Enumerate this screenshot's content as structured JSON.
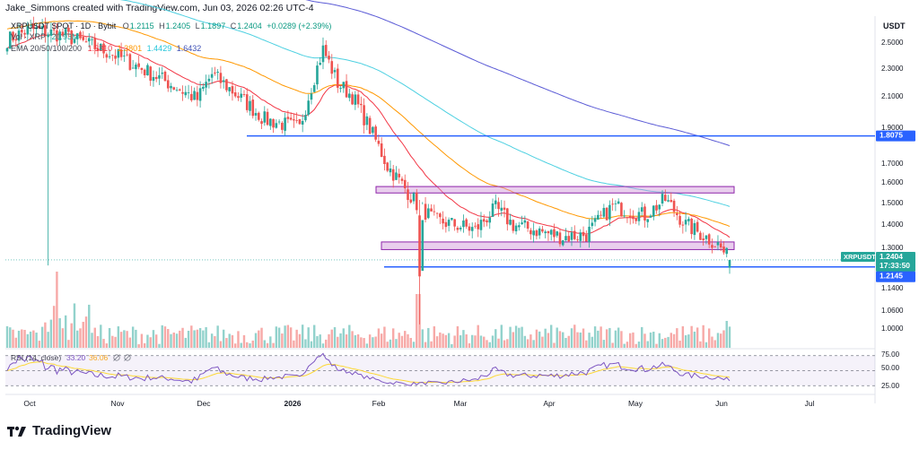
{
  "header": {
    "text": "Jake_Simmons created with TradingView.com, Jun 03, 2026 02:26 UTC-4"
  },
  "legend": {
    "symbol": "XRPUSDT SPOT · 1D · Bybit",
    "ohlc": [
      {
        "k": "O",
        "v": "1.2115"
      },
      {
        "k": "H",
        "v": "1.2405"
      },
      {
        "k": "L",
        "v": "1.1897"
      },
      {
        "k": "C",
        "v": "1.2404"
      }
    ],
    "change": "+0.0289 (+2.39%)",
    "change_color": "#089981",
    "vol_label": "Vol · XRP",
    "vol_value": "20.93M",
    "ema_label": "EMA 20/50/100/200",
    "ema_values": [
      {
        "v": "1.3310",
        "color": "#f23645"
      },
      {
        "v": "1.3801",
        "color": "#ff9800"
      },
      {
        "v": "1.4429",
        "color": "#26c6da"
      },
      {
        "v": "1.6432",
        "color": "#3f51b5"
      }
    ]
  },
  "axis": {
    "currency": "USDT",
    "price_ticks": [
      "2.5000",
      "2.3000",
      "2.1000",
      "1.9000",
      "1.7000",
      "1.6000",
      "1.5000",
      "1.4000",
      "1.3000",
      "1.1400",
      "1.0600",
      "1.0000"
    ],
    "rsi_ticks": [
      "75.00",
      "50.00",
      "25.00"
    ],
    "month_labels": [
      "Oct",
      "Nov",
      "Dec",
      "2026",
      "Feb",
      "Mar",
      "Apr",
      "May",
      "Jun",
      "Jul"
    ]
  },
  "price_badges": {
    "support_top": "1.8075",
    "symbol_tag": "XRPUSDT",
    "last_price": "1.2404",
    "countdown": "17:33:50",
    "support_low": "1.2145"
  },
  "rsi": {
    "label": "RSI (14, close)",
    "value": "33.20",
    "ma_value": "36.06"
  },
  "colors": {
    "up": "#26a69a",
    "down": "#ef5350",
    "ema20": "#f23645",
    "ema50": "#ff9800",
    "ema100": "#4dd0e1",
    "ema200": "#5b5bd6",
    "level": "#2962ff",
    "zone": "#ce93d8",
    "rsi_line": "#7e57c2",
    "rsi_ma": "#fdd835"
  },
  "chart_data": {
    "type": "candlestick",
    "symbol": "XRPUSDT",
    "timeframe": "1D",
    "y_axis_scale": "log",
    "ylim": [
      0.95,
      2.6
    ],
    "months": [
      "Oct",
      "Nov",
      "Dec",
      "2026",
      "Feb",
      "Mar",
      "Apr",
      "May",
      "Jun",
      "Jul"
    ],
    "horizontal_levels": [
      1.8075,
      1.2145
    ],
    "zones": [
      {
        "low": 1.52,
        "high": 1.55
      },
      {
        "low": 1.28,
        "high": 1.31
      }
    ],
    "close_path": [
      [
        "Oct",
        2.42
      ],
      [
        "Oct",
        2.5
      ],
      [
        "Nov",
        2.45
      ],
      [
        "Nov",
        2.3
      ],
      [
        "Dec",
        2.02
      ],
      [
        "Dec",
        2.18
      ],
      [
        "Dec",
        1.9
      ],
      [
        "2026",
        1.85
      ],
      [
        "2026",
        2.35
      ],
      [
        "2026",
        2.12
      ],
      [
        "2026",
        2.04
      ],
      [
        "2026",
        1.88
      ],
      [
        "Feb",
        1.65
      ],
      [
        "Feb",
        1.47
      ],
      [
        "Feb",
        1.4
      ],
      [
        "Mar",
        1.36
      ],
      [
        "Mar",
        1.45
      ],
      [
        "Mar",
        1.38
      ],
      [
        "Apr",
        1.33
      ],
      [
        "Apr",
        1.34
      ],
      [
        "Apr",
        1.46
      ],
      [
        "May",
        1.42
      ],
      [
        "May",
        1.49
      ],
      [
        "May",
        1.38
      ],
      [
        "Jun",
        1.3
      ],
      [
        "Jun",
        1.24
      ]
    ],
    "ema": [
      {
        "name": "EMA 20",
        "last": 1.331
      },
      {
        "name": "EMA 50",
        "last": 1.3801
      },
      {
        "name": "EMA 100",
        "last": 1.4429
      },
      {
        "name": "EMA 200",
        "last": 1.6432
      }
    ],
    "rsi": {
      "length": 14,
      "last": 33.2,
      "ma": 36.06,
      "levels": [
        75,
        50,
        25
      ],
      "ylim": [
        15,
        85
      ]
    }
  },
  "branding": {
    "logo_text": "TradingView"
  }
}
